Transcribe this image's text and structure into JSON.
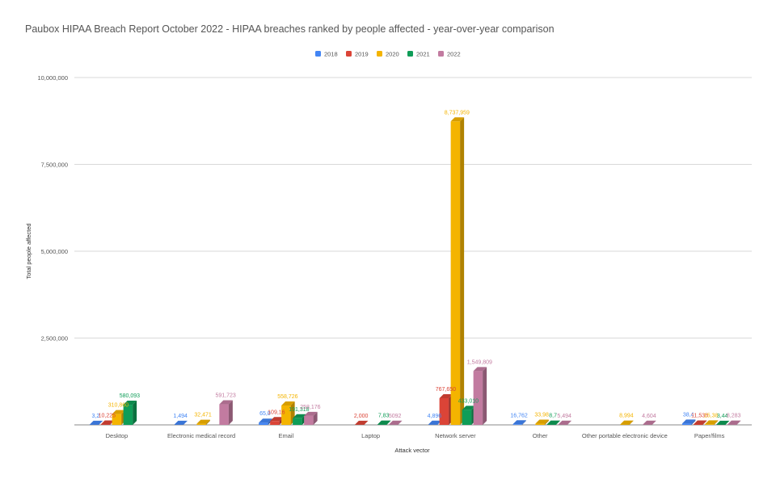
{
  "chart_data": {
    "type": "bar",
    "title": "Paubox HIPAA Breach Report October 2022 - HIPAA breaches ranked by people affected - year-over-year comparison",
    "xlabel": "Attack vector",
    "ylabel": "Total people affected",
    "ylim": [
      0,
      10000000
    ],
    "yticks": [
      "2,500,000",
      "5,000,000",
      "7,500,000",
      "10,000,000"
    ],
    "ytick_values": [
      2500000,
      5000000,
      7500000,
      10000000
    ],
    "grid": true,
    "legend_position": "top",
    "categories": [
      "Desktop",
      "Electronic medical record",
      "Email",
      "Laptop",
      "Network server",
      "Other",
      "Other portable electronic device",
      "Paper/films"
    ],
    "series": [
      {
        "name": "2018",
        "color": "#4285F4",
        "values": [
          3200,
          1494,
          65000,
          null,
          4896,
          16762,
          null,
          38457
        ],
        "labels": [
          "3,2",
          "1,494",
          "65,0",
          "",
          "4,896",
          "16,762",
          "",
          "38,4"
        ]
      },
      {
        "name": "2019",
        "color": "#DB4437",
        "values": [
          10225,
          null,
          109162,
          2000,
          767650,
          null,
          null,
          11536
        ],
        "labels": [
          "10,225",
          "",
          "109,16",
          "2,000",
          "767,650",
          "",
          "",
          "11,536"
        ]
      },
      {
        "name": "2020",
        "color": "#F4B400",
        "values": [
          310860,
          32471,
          558726,
          null,
          8737959,
          33988,
          8994,
          15383
        ],
        "labels": [
          "310,860",
          "32,471",
          "558,726",
          "",
          "8,737,959",
          "33,98",
          "8,994",
          "15,38"
        ]
      },
      {
        "name": "2021",
        "color": "#0F9D58",
        "values": [
          580093,
          null,
          191318,
          7834,
          433010,
          8700,
          null,
          3440
        ],
        "labels": [
          "580,093",
          "",
          "191,318",
          "7,83",
          "433,010",
          "8,7",
          "",
          "3,44"
        ]
      },
      {
        "name": "2022",
        "color": "#C27BA0",
        "values": [
          null,
          591723,
          258176,
          5092,
          1549809,
          5494,
          4604,
          8283
        ],
        "labels": [
          "",
          "591,723",
          "258,176",
          "5092",
          "1,549,809",
          "5,494",
          "4,604",
          "8,283"
        ]
      }
    ]
  }
}
